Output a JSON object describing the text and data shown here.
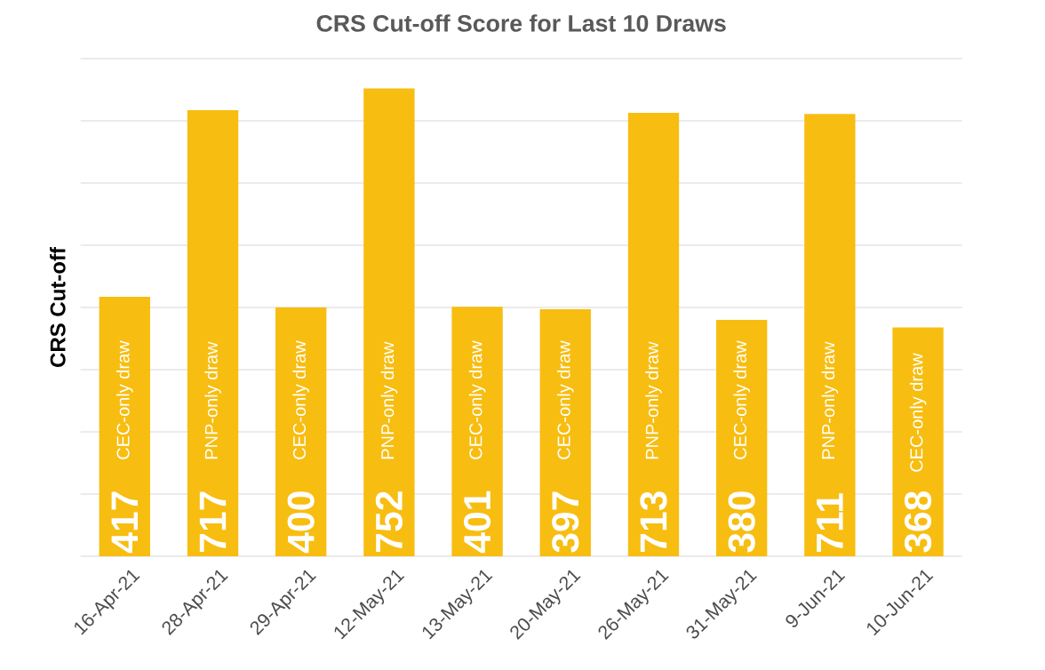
{
  "chart_data": {
    "type": "bar",
    "title": "CRS Cut-off Score for Last 10 Draws",
    "ylabel": "CRS Cut-off",
    "categories": [
      "16-Apr-21",
      "28-Apr-21",
      "29-Apr-21",
      "12-May-21",
      "13-May-21",
      "20-May-21",
      "26-May-21",
      "31-May-21",
      "9-Jun-21",
      "10-Jun-21"
    ],
    "values": [
      417,
      717,
      400,
      752,
      401,
      397,
      713,
      380,
      711,
      368
    ],
    "color": "#f7bd10",
    "data_labels": true,
    "ylim": [
      0,
      800
    ],
    "yticks": [
      {
        "value": 0,
        "label": null
      },
      {
        "value": 100,
        "label": null
      },
      {
        "value": 200,
        "label": null
      },
      {
        "value": 300,
        "label": null
      },
      {
        "value": 400,
        "label": null
      },
      {
        "value": 500,
        "label": null
      },
      {
        "value": 600,
        "label": null
      },
      {
        "value": 700,
        "label": null
      },
      {
        "value": 800,
        "label": null
      }
    ],
    "tick_labels": "x",
    "grid": "y",
    "annotations": [
      {
        "text": "CEC-only draw",
        "x": "16-Apr-21",
        "y": 150
      },
      {
        "text": "PNP-only draw",
        "x": "28-Apr-21",
        "y": 150
      },
      {
        "text": "CEC-only draw",
        "x": "29-Apr-21",
        "y": 150
      },
      {
        "text": "PNP-only draw",
        "x": "12-May-21",
        "y": 150
      },
      {
        "text": "CEC-only draw",
        "x": "13-May-21",
        "y": 150
      },
      {
        "text": "CEC-only draw",
        "x": "20-May-21",
        "y": 150
      },
      {
        "text": "PNP-only draw",
        "x": "26-May-21",
        "y": 150
      },
      {
        "text": "CEC-only draw",
        "x": "31-May-21",
        "y": 150
      },
      {
        "text": "PNP-only draw",
        "x": "9-Jun-21",
        "y": 150
      },
      {
        "text": "CEC-only draw",
        "x": "10-Jun-21",
        "y": 130
      }
    ]
  }
}
